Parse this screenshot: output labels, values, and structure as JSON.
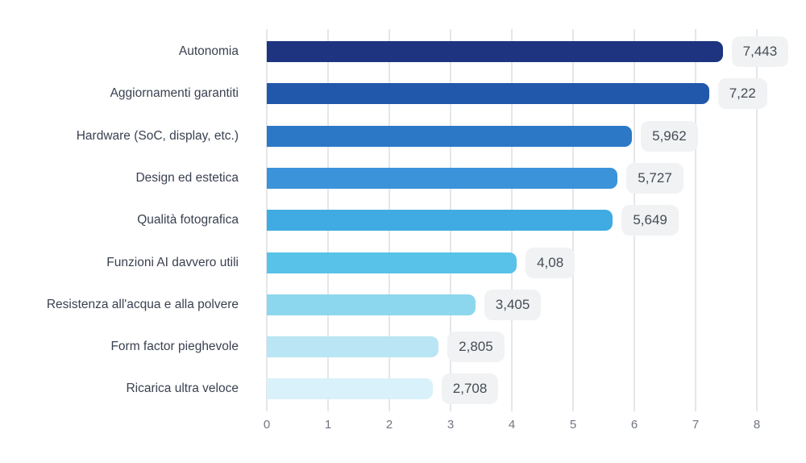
{
  "chart_data": {
    "type": "bar",
    "orientation": "horizontal",
    "title": "",
    "xlabel": "",
    "ylabel": "",
    "categories": [
      "Autonomia",
      "Aggiornamenti garantiti",
      "Hardware (SoC, display, etc.)",
      "Design ed estetica",
      "Qualità fotografica",
      "Funzioni AI davvero utili",
      "Resistenza all'acqua e alla polvere",
      "Form factor pieghevole",
      "Ricarica ultra veloce"
    ],
    "values": [
      7.443,
      7.22,
      5.962,
      5.727,
      5.649,
      4.08,
      3.405,
      2.805,
      2.708
    ],
    "value_labels": [
      "7,443",
      "7,22",
      "5,962",
      "5,727",
      "5,649",
      "4,08",
      "3,405",
      "2,805",
      "2,708"
    ],
    "bar_colors": [
      "#1e3480",
      "#2158ab",
      "#2d78c6",
      "#3b93da",
      "#3fabe2",
      "#58c2e9",
      "#8dd7ee",
      "#b9e5f4",
      "#d9f1fa"
    ],
    "xlim": [
      0,
      8
    ],
    "x_ticks": [
      "0",
      "1",
      "2",
      "3",
      "4",
      "5",
      "6",
      "7",
      "8"
    ],
    "grid": "vertical",
    "legend": "none",
    "background_color": "#ffffff",
    "gridline_color": "#e4e7ea",
    "badge_background": "#f1f2f3",
    "badge_text_color": "#454c56",
    "category_label_color": "#3a4150",
    "tick_label_color": "#6f7680"
  }
}
